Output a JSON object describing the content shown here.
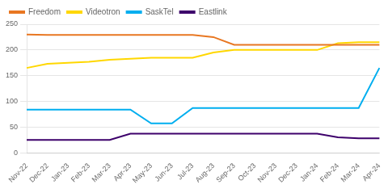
{
  "chart_data": {
    "type": "line",
    "categories": [
      "Nov-22",
      "Dec-22",
      "Jan-23",
      "Feb-23",
      "Mar-23",
      "Apr-23",
      "May-23",
      "Jun-23",
      "Jul-23",
      "Aug-23",
      "Sep-23",
      "Oct-23",
      "Nov-23",
      "Dec-23",
      "Jan-24",
      "Feb-24",
      "Mar-24",
      "Apr-24"
    ],
    "series": [
      {
        "name": "Freedom",
        "color": "#E87722",
        "values": [
          230,
          229,
          229,
          229,
          229,
          229,
          229,
          229,
          229,
          225,
          210,
          210,
          210,
          210,
          210,
          210,
          210,
          210
        ]
      },
      {
        "name": "Videotron",
        "color": "#FFD700",
        "values": [
          165,
          173,
          175,
          177,
          181,
          183,
          185,
          185,
          185,
          195,
          200,
          200,
          200,
          200,
          200,
          213,
          215,
          215
        ]
      },
      {
        "name": "SaskTel",
        "color": "#00AEEF",
        "values": [
          84,
          84,
          84,
          84,
          84,
          84,
          57,
          57,
          87,
          87,
          87,
          87,
          87,
          87,
          87,
          87,
          87,
          165
        ]
      },
      {
        "name": "Eastlink",
        "color": "#3D006B",
        "values": [
          25,
          25,
          25,
          25,
          25,
          37,
          37,
          37,
          37,
          37,
          37,
          37,
          37,
          37,
          37,
          30,
          28,
          28
        ]
      }
    ],
    "ylim": [
      0,
      250
    ],
    "yticks": [
      0,
      50,
      100,
      150,
      200,
      250
    ],
    "grid": true,
    "legend": "upper left"
  }
}
